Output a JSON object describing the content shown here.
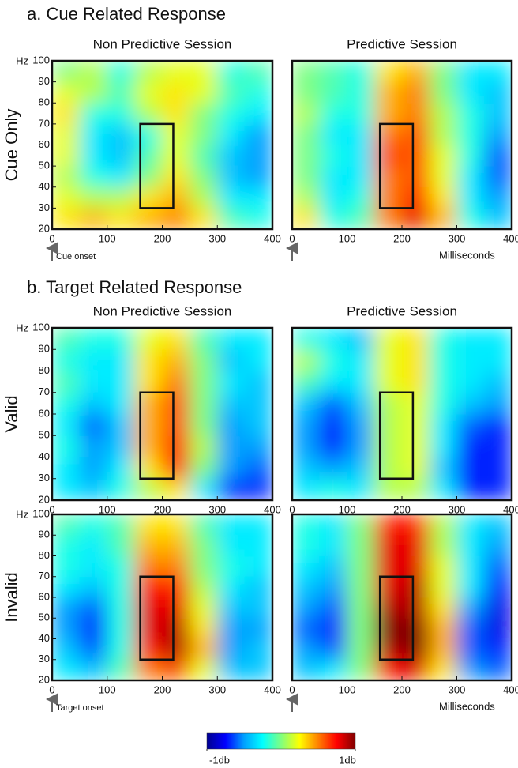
{
  "headings": [
    "a. Cue Related Response",
    "b. Target Related Response"
  ],
  "colorbar": {
    "lim": [
      -1,
      1
    ],
    "colors": [
      "#00008f",
      "#0000ff",
      "#00a0ff",
      "#00ffff",
      "#80ff80",
      "#ffff00",
      "#ff8000",
      "#ff0000",
      "#800000"
    ],
    "ticks": [
      {
        "value": -1,
        "label": "-1db"
      },
      {
        "value": 1,
        "label": "1db"
      }
    ]
  },
  "chart_data": [
    {
      "type": "heatmap",
      "title": "Non Predictive Session",
      "ylabel": "Cue Only",
      "y_unit": "Hz",
      "x": [
        25,
        75,
        125,
        175,
        225,
        275,
        325,
        375
      ],
      "y": [
        25,
        35,
        45,
        55,
        65,
        75,
        85,
        95
      ],
      "values": [
        [
          0.3,
          0.4,
          0.3,
          0.4,
          0.5,
          0.3,
          -0.1,
          -0.2
        ],
        [
          0.2,
          0.1,
          0.1,
          0.3,
          0.4,
          0.1,
          -0.3,
          -0.3
        ],
        [
          0.1,
          -0.2,
          -0.3,
          0.0,
          0.3,
          0.0,
          -0.4,
          -0.5
        ],
        [
          0.2,
          -0.3,
          -0.4,
          -0.1,
          0.2,
          -0.1,
          -0.4,
          -0.5
        ],
        [
          0.2,
          -0.3,
          -0.4,
          -0.2,
          0.2,
          0.0,
          -0.3,
          -0.5
        ],
        [
          0.3,
          -0.2,
          -0.2,
          0.1,
          0.3,
          0.0,
          -0.2,
          -0.3
        ],
        [
          0.2,
          0.1,
          -0.1,
          0.2,
          0.3,
          0.2,
          -0.1,
          -0.2
        ],
        [
          0.0,
          0.1,
          -0.2,
          0.1,
          0.2,
          0.2,
          -0.2,
          -0.1
        ]
      ],
      "xlim": [
        0,
        400
      ],
      "ylim": [
        20,
        100
      ],
      "xticks": [
        0,
        100,
        200,
        300,
        400
      ],
      "yticks": [
        20,
        30,
        40,
        50,
        60,
        70,
        80,
        90,
        100
      ],
      "highlight_box": {
        "x": [
          160,
          220
        ],
        "y": [
          30,
          70
        ]
      },
      "onset_arrow": true,
      "onset_label": "Cue onset"
    },
    {
      "type": "heatmap",
      "title": "Predictive Session",
      "x": [
        25,
        75,
        125,
        175,
        225,
        275,
        325,
        375
      ],
      "y": [
        25,
        35,
        45,
        55,
        65,
        75,
        85,
        95
      ],
      "values": [
        [
          0.3,
          -0.2,
          -0.1,
          0.5,
          0.8,
          0.4,
          -0.2,
          -0.4
        ],
        [
          0.1,
          -0.3,
          -0.2,
          0.5,
          0.7,
          0.3,
          -0.3,
          -0.5
        ],
        [
          0.0,
          -0.3,
          -0.3,
          0.5,
          0.6,
          0.2,
          -0.3,
          -0.6
        ],
        [
          0.0,
          -0.2,
          -0.3,
          0.6,
          0.6,
          0.2,
          -0.2,
          -0.6
        ],
        [
          0.0,
          -0.3,
          -0.3,
          0.5,
          0.6,
          0.1,
          -0.2,
          -0.5
        ],
        [
          0.1,
          -0.2,
          -0.2,
          0.4,
          0.5,
          0.1,
          -0.2,
          -0.4
        ],
        [
          0.0,
          -0.1,
          -0.2,
          0.4,
          0.5,
          0.0,
          -0.3,
          -0.4
        ],
        [
          0.0,
          -0.1,
          -0.2,
          0.3,
          0.4,
          0.0,
          -0.3,
          -0.3
        ]
      ],
      "xlim": [
        0,
        400
      ],
      "ylim": [
        20,
        100
      ],
      "xticks": [
        0,
        100,
        200,
        300,
        400
      ],
      "highlight_box": {
        "x": [
          160,
          220
        ],
        "y": [
          30,
          70
        ]
      },
      "onset_arrow": true,
      "xlabel": "Milliseconds"
    },
    {
      "type": "heatmap",
      "title": "Non Predictive Session",
      "ylabel": "Valid",
      "y_unit": "Hz",
      "x": [
        25,
        75,
        125,
        175,
        225,
        275,
        325,
        375
      ],
      "y": [
        25,
        35,
        45,
        55,
        65,
        75,
        85,
        95
      ],
      "values": [
        [
          -0.3,
          -0.4,
          -0.2,
          0.1,
          0.3,
          -0.3,
          -0.7,
          -0.7
        ],
        [
          -0.3,
          -0.5,
          -0.3,
          0.3,
          0.7,
          0.0,
          -0.5,
          -0.6
        ],
        [
          -0.2,
          -0.5,
          -0.4,
          0.4,
          0.7,
          0.1,
          -0.5,
          -0.5
        ],
        [
          -0.3,
          -0.6,
          -0.4,
          0.4,
          0.6,
          0.0,
          -0.5,
          -0.4
        ],
        [
          -0.2,
          -0.4,
          -0.3,
          0.4,
          0.6,
          0.0,
          -0.4,
          -0.4
        ],
        [
          -0.1,
          -0.3,
          -0.3,
          0.3,
          0.5,
          0.0,
          -0.3,
          -0.4
        ],
        [
          -0.2,
          -0.3,
          -0.3,
          0.3,
          0.4,
          0.0,
          -0.4,
          -0.3
        ],
        [
          -0.1,
          -0.2,
          -0.2,
          0.2,
          0.3,
          -0.1,
          -0.3,
          -0.3
        ]
      ],
      "xlim": [
        0,
        400
      ],
      "ylim": [
        20,
        100
      ],
      "xticks": [
        0,
        100,
        200,
        300,
        400
      ],
      "yticks": [
        20,
        30,
        40,
        50,
        60,
        70,
        80,
        90,
        100
      ],
      "highlight_box": {
        "x": [
          160,
          220
        ],
        "y": [
          30,
          70
        ]
      }
    },
    {
      "type": "heatmap",
      "title": "Predictive Session",
      "x": [
        25,
        75,
        125,
        175,
        225,
        275,
        325,
        375
      ],
      "y": [
        25,
        35,
        45,
        55,
        65,
        75,
        85,
        95
      ],
      "values": [
        [
          -0.3,
          -0.2,
          -0.3,
          0.1,
          0.1,
          -0.3,
          -0.7,
          -0.7
        ],
        [
          -0.4,
          -0.5,
          -0.4,
          0.1,
          0.2,
          -0.4,
          -0.7,
          -0.7
        ],
        [
          -0.5,
          -0.7,
          -0.5,
          0.1,
          0.2,
          -0.3,
          -0.7,
          -0.7
        ],
        [
          -0.5,
          -0.7,
          -0.5,
          0.1,
          0.2,
          -0.3,
          -0.6,
          -0.7
        ],
        [
          -0.4,
          -0.6,
          -0.4,
          0.1,
          0.2,
          -0.2,
          -0.4,
          -0.5
        ],
        [
          -0.1,
          -0.3,
          -0.3,
          0.2,
          0.3,
          -0.2,
          -0.3,
          -0.4
        ],
        [
          0.1,
          -0.2,
          -0.3,
          0.2,
          0.3,
          -0.2,
          -0.3,
          -0.3
        ],
        [
          -0.2,
          -0.3,
          -0.4,
          0.2,
          0.3,
          -0.2,
          -0.3,
          -0.3
        ]
      ],
      "xlim": [
        0,
        400
      ],
      "ylim": [
        20,
        100
      ],
      "xticks": [
        0,
        100,
        200,
        300,
        400
      ],
      "highlight_box": {
        "x": [
          160,
          220
        ],
        "y": [
          30,
          70
        ]
      }
    },
    {
      "type": "heatmap",
      "ylabel": "Invalid",
      "y_unit": "Hz",
      "x": [
        25,
        75,
        125,
        175,
        225,
        275,
        325,
        375
      ],
      "y": [
        25,
        35,
        45,
        55,
        65,
        75,
        85,
        95
      ],
      "values": [
        [
          -0.3,
          -0.4,
          -0.1,
          0.5,
          0.6,
          0.2,
          -0.4,
          -0.4
        ],
        [
          -0.4,
          -0.6,
          -0.2,
          0.7,
          0.9,
          0.4,
          -0.5,
          -0.4
        ],
        [
          -0.5,
          -0.7,
          -0.2,
          0.8,
          0.9,
          0.3,
          -0.5,
          -0.5
        ],
        [
          -0.5,
          -0.6,
          -0.2,
          0.8,
          0.8,
          0.2,
          -0.4,
          -0.4
        ],
        [
          -0.3,
          -0.4,
          -0.2,
          0.7,
          0.7,
          0.1,
          -0.3,
          -0.4
        ],
        [
          -0.2,
          -0.3,
          -0.2,
          0.5,
          0.5,
          0.0,
          -0.2,
          -0.3
        ],
        [
          -0.2,
          -0.3,
          -0.1,
          0.4,
          0.4,
          0.0,
          -0.3,
          -0.3
        ],
        [
          -0.1,
          -0.2,
          -0.1,
          0.3,
          0.3,
          -0.1,
          -0.3,
          -0.3
        ]
      ],
      "xlim": [
        0,
        400
      ],
      "ylim": [
        20,
        100
      ],
      "xticks": [
        0,
        100,
        200,
        300,
        400
      ],
      "yticks": [
        20,
        30,
        40,
        50,
        60,
        70,
        80,
        90,
        100
      ],
      "highlight_box": {
        "x": [
          160,
          220
        ],
        "y": [
          30,
          70
        ]
      },
      "onset_arrow": true,
      "onset_label": "Target onset"
    },
    {
      "type": "heatmap",
      "x": [
        25,
        75,
        125,
        175,
        225,
        275,
        325,
        375
      ],
      "y": [
        25,
        35,
        45,
        55,
        65,
        75,
        85,
        95
      ],
      "values": [
        [
          -0.4,
          -0.3,
          0.0,
          0.7,
          0.8,
          0.3,
          -0.5,
          -0.6
        ],
        [
          -0.5,
          -0.6,
          0.0,
          0.9,
          1.0,
          0.4,
          -0.6,
          -0.7
        ],
        [
          -0.6,
          -0.7,
          0.0,
          1.0,
          1.0,
          0.4,
          -0.6,
          -0.8
        ],
        [
          -0.5,
          -0.6,
          0.0,
          0.9,
          0.9,
          0.3,
          -0.5,
          -0.8
        ],
        [
          -0.4,
          -0.5,
          0.0,
          0.8,
          0.9,
          0.2,
          -0.3,
          -0.7
        ],
        [
          -0.3,
          -0.4,
          0.0,
          0.8,
          0.8,
          0.2,
          -0.3,
          -0.6
        ],
        [
          -0.2,
          -0.3,
          0.0,
          0.8,
          0.8,
          0.1,
          -0.3,
          -0.5
        ],
        [
          -0.2,
          -0.3,
          0.0,
          0.7,
          0.7,
          0.1,
          -0.3,
          -0.4
        ]
      ],
      "xlim": [
        0,
        400
      ],
      "ylim": [
        20,
        100
      ],
      "xticks": [
        0,
        100,
        200,
        300,
        400
      ],
      "highlight_box": {
        "x": [
          160,
          220
        ],
        "y": [
          30,
          70
        ]
      },
      "onset_arrow": true,
      "xlabel": "Milliseconds"
    }
  ]
}
